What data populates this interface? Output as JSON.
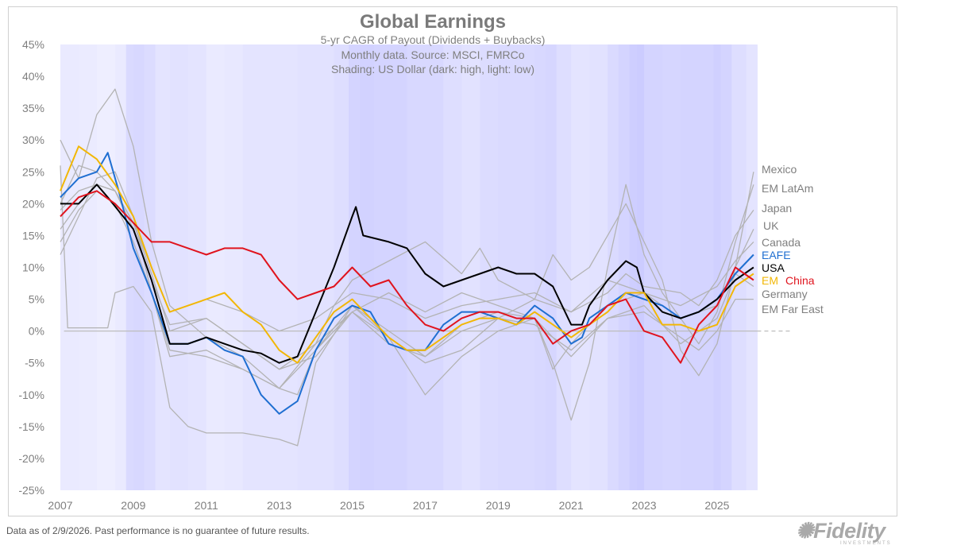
{
  "chart_data": {
    "type": "line",
    "title": "Global Earnings",
    "subtitles": [
      "5-yr CAGR of Payout (Dividends + Buybacks)",
      "Monthly data.  Source: MSCI, FMRCo",
      "Shading: US Dollar (dark: high, light: low)"
    ],
    "xlabel": "",
    "ylabel": "",
    "xlim": [
      2007,
      2026.1
    ],
    "ylim": [
      -25,
      45
    ],
    "x_ticks": [
      "2007",
      "2009",
      "2011",
      "2013",
      "2015",
      "2017",
      "2019",
      "2021",
      "2023",
      "2025"
    ],
    "y_ticks": [
      "45%",
      "40%",
      "35%",
      "30%",
      "25%",
      "20%",
      "15%",
      "10%",
      "5%",
      "0%",
      "-5%",
      "-10%",
      "-15%",
      "-20%",
      "-25%"
    ],
    "grid": false,
    "legend": "right",
    "dollar_shading": {
      "years": [
        2007,
        2007.5,
        2008,
        2008.5,
        2008.8,
        2009,
        2009.3,
        2009.6,
        2010,
        2010.5,
        2011,
        2011.5,
        2012,
        2012.5,
        2013,
        2013.5,
        2014,
        2014.5,
        2014.9,
        2015.2,
        2015.6,
        2016,
        2016.5,
        2017,
        2017.5,
        2018,
        2018.5,
        2019,
        2019.5,
        2020,
        2020.3,
        2020.6,
        2021,
        2021.5,
        2022,
        2022.3,
        2022.6,
        2022.8,
        2023,
        2023.5,
        2024,
        2024.5,
        2024.9,
        2025.1,
        2025.4,
        2025.8
      ],
      "level": [
        0.15,
        0.12,
        0.05,
        0.15,
        0.55,
        0.6,
        0.5,
        0.3,
        0.35,
        0.3,
        0.15,
        0.2,
        0.3,
        0.3,
        0.3,
        0.35,
        0.35,
        0.45,
        0.7,
        0.75,
        0.7,
        0.7,
        0.6,
        0.6,
        0.45,
        0.35,
        0.5,
        0.55,
        0.55,
        0.6,
        0.65,
        0.45,
        0.3,
        0.35,
        0.55,
        0.7,
        0.85,
        0.9,
        0.7,
        0.65,
        0.7,
        0.7,
        0.8,
        0.7,
        0.45,
        0.3
      ]
    },
    "series": [
      {
        "name": "Mexico",
        "color": "#b3b3b3",
        "label_color": "#7f7f7f",
        "x": [
          2007,
          2007.2,
          2008.3,
          2008.5,
          2009,
          2009.5,
          2010,
          2010.5,
          2011,
          2012,
          2013,
          2013.5,
          2014,
          2015,
          2016,
          2017,
          2018,
          2019,
          2020,
          2020.5,
          2021,
          2021.5,
          2022,
          2022.5,
          2023,
          2023.5,
          2024,
          2024.5,
          2025,
          2025.5,
          2026
        ],
        "y": [
          26,
          0.5,
          0.5,
          6,
          7,
          3,
          -12,
          -15,
          -16,
          -16,
          -17,
          -18,
          -5,
          4,
          -1,
          -5,
          -3,
          2,
          5,
          12,
          8,
          10,
          15,
          20,
          14,
          8,
          -3,
          -7,
          -2,
          10,
          25
        ]
      },
      {
        "name": "EM LatAm",
        "color": "#b3b3b3",
        "label_color": "#7f7f7f",
        "x": [
          2007,
          2007.5,
          2008,
          2008.5,
          2009,
          2009.5,
          2010,
          2011,
          2012,
          2013,
          2013.5,
          2014,
          2015,
          2016,
          2017,
          2018,
          2019,
          2020,
          2020.5,
          2021,
          2021.5,
          2022,
          2022.5,
          2023,
          2023.5,
          2024,
          2024.5,
          2025,
          2025.5,
          2026
        ],
        "y": [
          30,
          24,
          34,
          38,
          29,
          14,
          4,
          -1,
          -4,
          -9,
          -10,
          -3,
          3,
          -1,
          -10,
          -4,
          0,
          2,
          -5,
          -14,
          -5,
          10,
          23,
          12,
          6,
          2,
          -2,
          3,
          14,
          23
        ]
      },
      {
        "name": "Japan",
        "color": "#b3b3b3",
        "label_color": "#7f7f7f",
        "x": [
          2007,
          2007.5,
          2008,
          2008.5,
          2009,
          2009.5,
          2010,
          2011,
          2012,
          2013,
          2014,
          2014.5,
          2015,
          2016,
          2017,
          2018,
          2018.5,
          2019,
          2020,
          2021,
          2022,
          2022.5,
          2023,
          2024,
          2024.5,
          2025,
          2025.5,
          2026
        ],
        "y": [
          12,
          18,
          24,
          25,
          18,
          6,
          -4,
          -3,
          -6,
          -9,
          -2,
          4,
          8,
          11,
          14,
          9,
          13,
          8,
          5,
          3,
          6,
          9,
          7,
          6,
          4,
          8,
          15,
          19
        ]
      },
      {
        "name": "UK",
        "color": "#b3b3b3",
        "label_color": "#7f7f7f",
        "x": [
          2007,
          2007.5,
          2008,
          2008.5,
          2009,
          2009.5,
          2010,
          2011,
          2012,
          2013,
          2014,
          2015,
          2016,
          2017,
          2018,
          2019,
          2020,
          2020.5,
          2021,
          2022,
          2023,
          2024,
          2025,
          2025.5,
          2026
        ],
        "y": [
          16,
          20,
          23,
          22,
          17,
          9,
          0,
          2,
          -2,
          -6,
          -4,
          3,
          6,
          3,
          6,
          4,
          2,
          -6,
          -2,
          4,
          6,
          2,
          4,
          10,
          16
        ]
      },
      {
        "name": "Canada",
        "color": "#b3b3b3",
        "label_color": "#7f7f7f",
        "x": [
          2007,
          2007.5,
          2008,
          2008.5,
          2009,
          2009.5,
          2010,
          2011,
          2012,
          2013,
          2014,
          2015,
          2016,
          2017,
          2018,
          2019,
          2020,
          2021,
          2022,
          2023,
          2024,
          2025,
          2025.5,
          2026
        ],
        "y": [
          19,
          22,
          23,
          22,
          17,
          10,
          3,
          5,
          3,
          0,
          2,
          6,
          5,
          2,
          4,
          5,
          6,
          3,
          8,
          6,
          4,
          7,
          11,
          14
        ]
      },
      {
        "name": "EAFE",
        "color": "#1f6fd1",
        "label_color": "#1f6fd1",
        "x": [
          2007,
          2007.5,
          2008,
          2008.3,
          2008.6,
          2009,
          2009.5,
          2010,
          2010.5,
          2011,
          2011.5,
          2012,
          2012.5,
          2013,
          2013.5,
          2014,
          2014.5,
          2015,
          2015.5,
          2016,
          2016.5,
          2017,
          2017.5,
          2018,
          2018.5,
          2019,
          2019.5,
          2020,
          2020.5,
          2021,
          2021.3,
          2021.5,
          2022,
          2022.5,
          2023,
          2023.5,
          2024,
          2024.5,
          2025,
          2025.5,
          2026
        ],
        "y": [
          21,
          24,
          25,
          28,
          22,
          13,
          6,
          -2,
          -2,
          -1,
          -3,
          -4,
          -10,
          -13,
          -11,
          -3,
          2,
          4,
          3,
          -2,
          -3,
          -3,
          1,
          3,
          3,
          2,
          1,
          4,
          2,
          -2,
          -1,
          2,
          4,
          6,
          5,
          4,
          2,
          3,
          5,
          9,
          12
        ]
      },
      {
        "name": "USA",
        "color": "#000000",
        "label_color": "#000000",
        "x": [
          2007,
          2007.5,
          2008,
          2008.3,
          2009,
          2009.5,
          2010,
          2010.5,
          2011,
          2011.5,
          2012,
          2012.5,
          2013,
          2013.5,
          2014,
          2014.5,
          2015,
          2015.1,
          2015.3,
          2016,
          2016.5,
          2017,
          2017.5,
          2018,
          2018.5,
          2019,
          2019.5,
          2020,
          2020.5,
          2021,
          2021.3,
          2021.5,
          2022,
          2022.5,
          2022.8,
          2023,
          2023.5,
          2024,
          2024.5,
          2025,
          2025.5,
          2026
        ],
        "y": [
          20,
          20,
          23,
          21,
          16,
          8,
          -2,
          -2,
          -1,
          -2,
          -3,
          -3.5,
          -5,
          -4,
          3,
          10,
          18,
          19.5,
          15,
          14,
          13,
          9,
          7,
          8,
          9,
          10,
          9,
          9,
          7,
          1,
          1,
          4,
          8,
          11,
          10,
          6,
          3,
          2,
          3,
          5,
          8,
          10
        ]
      },
      {
        "name": "EM",
        "color": "#f2b705",
        "label_color": "#f2b705",
        "x": [
          2007,
          2007.5,
          2008,
          2008.5,
          2009,
          2009.5,
          2010,
          2010.5,
          2011,
          2011.5,
          2012,
          2012.5,
          2013,
          2013.5,
          2014,
          2014.5,
          2015,
          2015.5,
          2016,
          2016.5,
          2017,
          2017.5,
          2018,
          2018.5,
          2019,
          2019.5,
          2020,
          2020.5,
          2021,
          2021.5,
          2022,
          2022.5,
          2023,
          2023.5,
          2024,
          2024.5,
          2025,
          2025.5,
          2026
        ],
        "y": [
          22,
          29,
          27,
          23,
          18,
          10,
          3,
          4,
          5,
          6,
          3,
          1,
          -3,
          -5,
          -1,
          3,
          5,
          2,
          -1,
          -3,
          -3,
          -1,
          1,
          2,
          2,
          1,
          3,
          1,
          -1,
          1,
          3,
          6,
          6,
          1,
          1,
          0,
          1,
          7,
          9
        ]
      },
      {
        "name": "China",
        "color": "#e0141e",
        "label_color": "#e0141e",
        "x": [
          2007,
          2007.5,
          2008,
          2008.5,
          2009,
          2009.5,
          2010,
          2010.5,
          2011,
          2011.5,
          2012,
          2012.5,
          2013,
          2013.5,
          2014,
          2014.5,
          2015,
          2015.5,
          2016,
          2016.5,
          2017,
          2017.5,
          2018,
          2018.5,
          2019,
          2019.5,
          2020,
          2020.5,
          2021,
          2021.5,
          2022,
          2022.5,
          2023,
          2023.5,
          2024,
          2024.5,
          2025,
          2025.5,
          2026
        ],
        "y": [
          18,
          21,
          22,
          20,
          17,
          14,
          14,
          13,
          12,
          13,
          13,
          12,
          8,
          5,
          6,
          7,
          10,
          7,
          8,
          4,
          1,
          0,
          2,
          3,
          3,
          2,
          2,
          -2,
          0,
          1,
          4,
          5,
          0,
          -1,
          -5,
          1,
          4,
          10,
          8
        ]
      },
      {
        "name": "Germany",
        "color": "#b3b3b3",
        "label_color": "#7f7f7f",
        "x": [
          2007,
          2007.5,
          2008,
          2008.5,
          2009,
          2009.5,
          2010,
          2011,
          2012,
          2013,
          2014,
          2015,
          2016,
          2017,
          2018,
          2019,
          2020,
          2021,
          2022,
          2023,
          2024,
          2025,
          2025.5,
          2026
        ],
        "y": [
          14,
          19,
          22,
          20,
          14,
          6,
          -3,
          -4,
          -6,
          -9,
          -3,
          4,
          0,
          -4,
          1,
          3,
          2,
          -4,
          2,
          4,
          -2,
          2,
          9,
          7
        ]
      },
      {
        "name": "EM Far East",
        "color": "#b3b3b3",
        "label_color": "#7f7f7f",
        "x": [
          2007,
          2007.5,
          2008,
          2008.5,
          2009,
          2009.5,
          2010,
          2011,
          2012,
          2013,
          2014,
          2015,
          2016,
          2017,
          2018,
          2019,
          2020,
          2021,
          2022,
          2023,
          2024,
          2024.5,
          2025,
          2025.5,
          2026
        ],
        "y": [
          20,
          26,
          25,
          22,
          16,
          8,
          1,
          2,
          -2,
          -6,
          -2,
          3,
          -2,
          -4,
          0,
          2,
          1,
          -3,
          2,
          3,
          -1,
          -3,
          0,
          5,
          5
        ]
      }
    ]
  },
  "footer": {
    "note": "Data as of 2/9/2026. Past performance is no guarantee of future results.",
    "logo": "Fidelity",
    "logo_sub": "INVESTMENTS"
  }
}
